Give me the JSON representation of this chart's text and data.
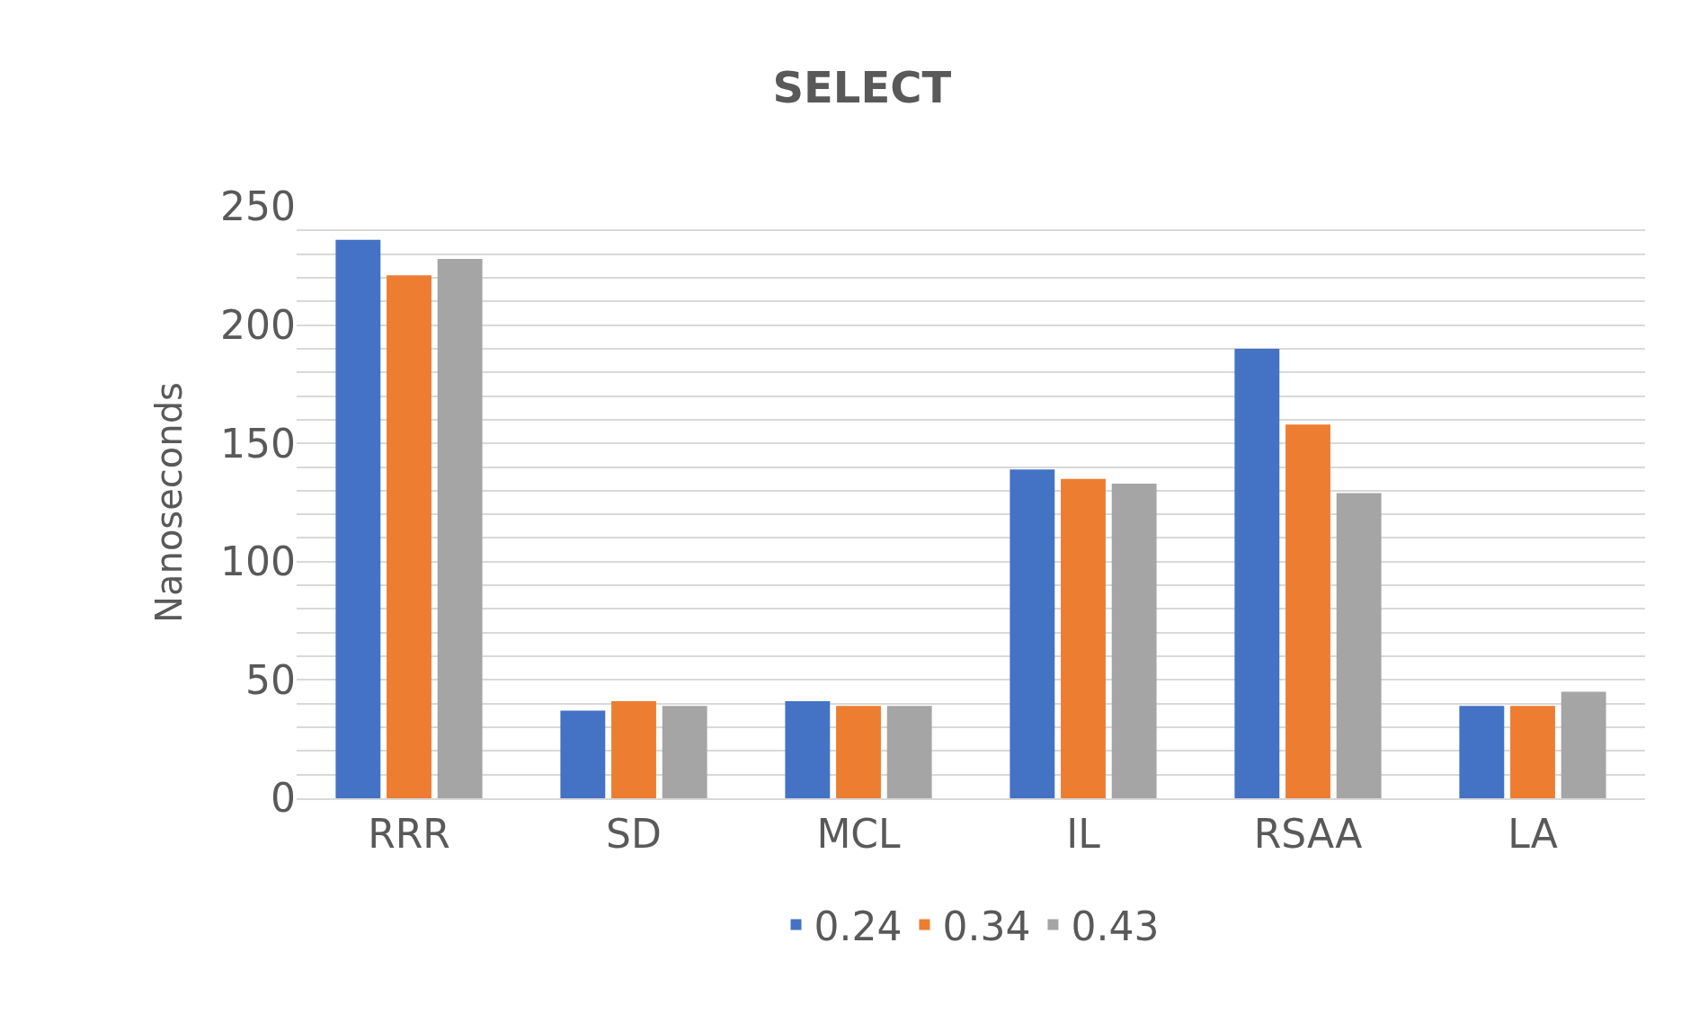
{
  "chart_data": {
    "type": "bar",
    "title": "SELECT",
    "ylabel": "Nanoseconds",
    "categories": [
      "RRR",
      "SD",
      "MCL",
      "IL",
      "RSAA",
      "LA"
    ],
    "series": [
      {
        "name": "0.24",
        "color": "#4472c4",
        "values": [
          236,
          37,
          41,
          139,
          190,
          39
        ]
      },
      {
        "name": "0.34",
        "color": "#ed7d31",
        "values": [
          221,
          41,
          39,
          135,
          158,
          39
        ]
      },
      {
        "name": "0.43",
        "color": "#a5a5a5",
        "values": [
          228,
          39,
          39,
          133,
          129,
          45
        ]
      }
    ],
    "ylim": [
      0,
      250
    ],
    "yticks": [
      0,
      {
        "value": 10,
        "label": null
      },
      {
        "value": 20,
        "label": null
      },
      {
        "value": 30,
        "label": null
      },
      {
        "value": 40,
        "label": null
      },
      50,
      {
        "value": 60,
        "label": null
      },
      {
        "value": 70,
        "label": null
      },
      {
        "value": 80,
        "label": null
      },
      {
        "value": 90,
        "label": null
      },
      100,
      {
        "value": 110,
        "label": null
      },
      {
        "value": 120,
        "label": null
      },
      {
        "value": 130,
        "label": null
      },
      {
        "value": 140,
        "label": null
      },
      150,
      {
        "value": 160,
        "label": null
      },
      {
        "value": 170,
        "label": null
      },
      {
        "value": 180,
        "label": null
      },
      {
        "value": 190,
        "label": null
      },
      200,
      {
        "value": 210,
        "label": null
      },
      {
        "value": 220,
        "label": null
      },
      {
        "value": 230,
        "label": null
      },
      {
        "value": 240,
        "label": null
      },
      250
    ],
    "grid": "y",
    "legend": "bottom"
  }
}
